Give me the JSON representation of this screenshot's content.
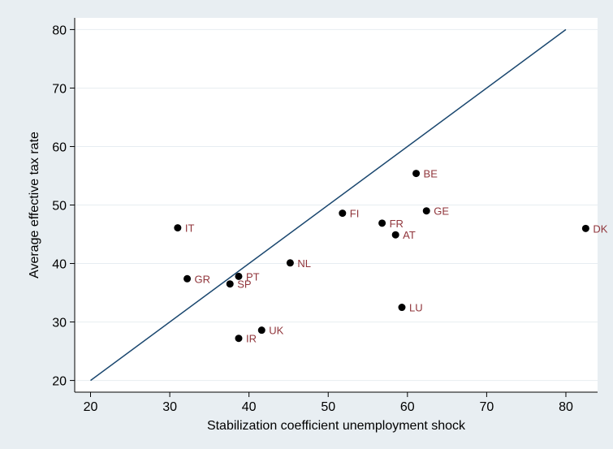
{
  "chart_data": {
    "type": "scatter",
    "xlabel": "Stabilization coefficient unemployment shock",
    "ylabel": "Average effective tax rate",
    "xlim": [
      18,
      84
    ],
    "ylim": [
      18,
      82
    ],
    "xticks": [
      20,
      30,
      40,
      50,
      60,
      70,
      80
    ],
    "yticks": [
      20,
      30,
      40,
      50,
      60,
      70,
      80
    ],
    "grid": true,
    "reference_line": {
      "from": [
        20,
        20
      ],
      "to": [
        80,
        80
      ]
    },
    "points": [
      {
        "label": "IT",
        "x": 31.0,
        "y": 46.1
      },
      {
        "label": "GR",
        "x": 32.2,
        "y": 37.4
      },
      {
        "label": "SP",
        "x": 37.6,
        "y": 36.5
      },
      {
        "label": "PT",
        "x": 38.7,
        "y": 37.8
      },
      {
        "label": "IR",
        "x": 38.7,
        "y": 27.2
      },
      {
        "label": "UK",
        "x": 41.6,
        "y": 28.6
      },
      {
        "label": "NL",
        "x": 45.2,
        "y": 40.1
      },
      {
        "label": "FI",
        "x": 51.8,
        "y": 48.6
      },
      {
        "label": "FR",
        "x": 56.8,
        "y": 46.9
      },
      {
        "label": "AT",
        "x": 58.5,
        "y": 44.9
      },
      {
        "label": "LU",
        "x": 59.3,
        "y": 32.5
      },
      {
        "label": "BE",
        "x": 61.1,
        "y": 55.4
      },
      {
        "label": "GE",
        "x": 62.4,
        "y": 49.0
      },
      {
        "label": "DK",
        "x": 82.5,
        "y": 46.0
      }
    ],
    "colors": {
      "background": "#e8eef2",
      "plot_background": "#ffffff",
      "grid": "#e7edf1",
      "axis": "#000000",
      "line": "#1a476f",
      "marker": "#000000",
      "label": "#90353b"
    }
  }
}
